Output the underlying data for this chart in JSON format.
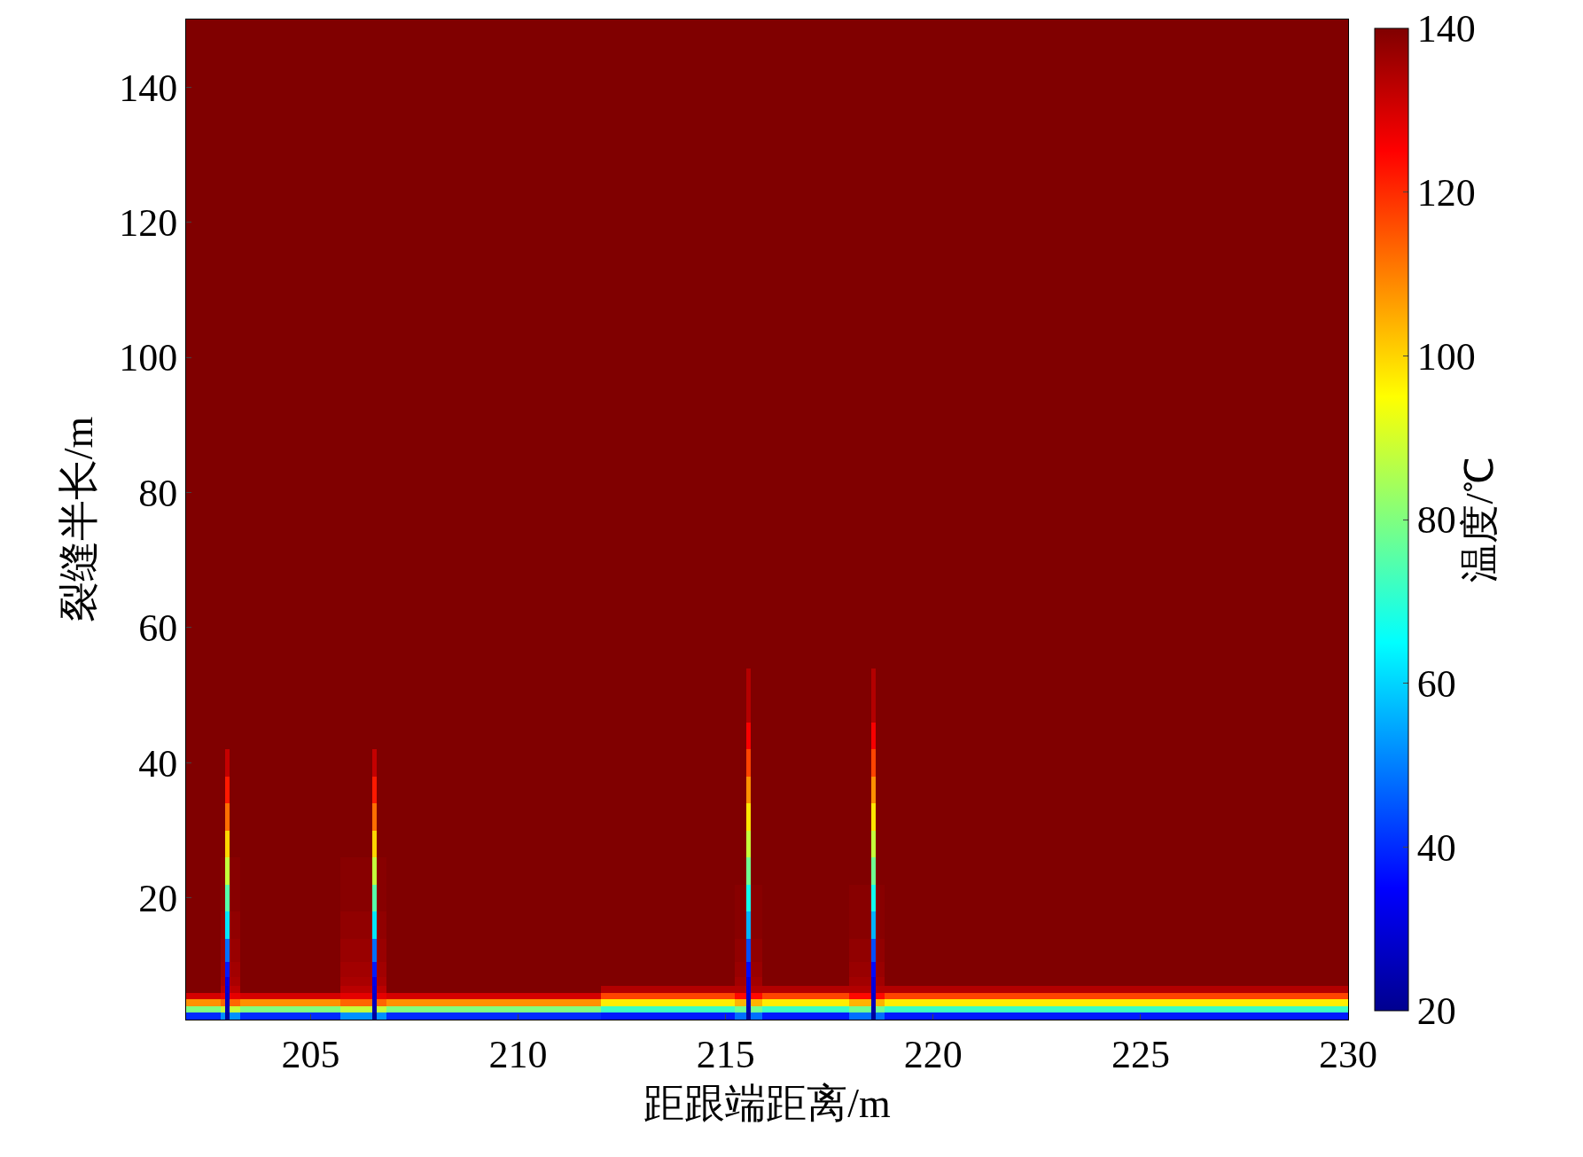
{
  "chart_data": {
    "type": "heatmap",
    "xlabel": "距跟端距离/m",
    "ylabel": "裂缝半长/m",
    "clabel": "温度/℃",
    "x": [
      202.25,
      202.75,
      202.9,
      203.0,
      203.1,
      203.5,
      205.0,
      206.44,
      206.54,
      206.64,
      207.0,
      209.0,
      211.9,
      212.1,
      215.0,
      215.45,
      215.55,
      215.65,
      216.1,
      217.5,
      218.47,
      218.57,
      218.67,
      219.0,
      222.0,
      226.0,
      229.25,
      229.75
    ],
    "y": [
      2.5,
      3.5,
      4.5,
      5.5,
      6.5,
      7.5,
      9,
      12,
      16,
      20,
      24,
      28,
      32,
      36,
      40,
      44,
      48,
      60,
      100,
      148.5,
      149.5
    ],
    "cells": [
      [
        40,
        40,
        52,
        22,
        52,
        40,
        40,
        52,
        22,
        52,
        40,
        40,
        40,
        38,
        38,
        48,
        22,
        48,
        38,
        38,
        48,
        22,
        48,
        38,
        38,
        38,
        38,
        38
      ],
      [
        80,
        80,
        88,
        24,
        88,
        80,
        80,
        88,
        24,
        88,
        80,
        80,
        80,
        72,
        72,
        78,
        24,
        78,
        72,
        72,
        78,
        24,
        78,
        72,
        72,
        72,
        72,
        72
      ],
      [
        108,
        108,
        113,
        26,
        113,
        108,
        108,
        113,
        26,
        113,
        108,
        108,
        108,
        97,
        97,
        104,
        26,
        104,
        97,
        97,
        104,
        26,
        104,
        97,
        97,
        97,
        97,
        97
      ],
      [
        130,
        130,
        128,
        28,
        128,
        130,
        130,
        128,
        28,
        128,
        130,
        130,
        130,
        117,
        117,
        124,
        28,
        124,
        117,
        117,
        124,
        28,
        124,
        117,
        117,
        117,
        117,
        117
      ],
      [
        140,
        140,
        133,
        30,
        133,
        140,
        140,
        133,
        30,
        133,
        140,
        140,
        140,
        134,
        134,
        134,
        30,
        134,
        134,
        134,
        134,
        30,
        134,
        134,
        134,
        134,
        134,
        134
      ],
      [
        140,
        140,
        135,
        32,
        135,
        140,
        140,
        135,
        32,
        135,
        140,
        140,
        140,
        140,
        140,
        136,
        31,
        136,
        140,
        140,
        136,
        31,
        136,
        140,
        140,
        140,
        140,
        140
      ],
      [
        140,
        140,
        136,
        38,
        136,
        140,
        140,
        136,
        38,
        136,
        140,
        140,
        140,
        140,
        140,
        137,
        36,
        137,
        140,
        140,
        137,
        36,
        137,
        140,
        140,
        140,
        140,
        140
      ],
      [
        140,
        140,
        137,
        48,
        137,
        140,
        140,
        137,
        48,
        137,
        140,
        140,
        140,
        140,
        140,
        138,
        44,
        138,
        140,
        140,
        138,
        44,
        138,
        140,
        140,
        140,
        140,
        140
      ],
      [
        140,
        140,
        138,
        62,
        138,
        140,
        140,
        138,
        62,
        138,
        140,
        140,
        140,
        140,
        140,
        139,
        56,
        139,
        140,
        140,
        139,
        56,
        139,
        140,
        140,
        140,
        140,
        140
      ],
      [
        140,
        140,
        139,
        75,
        139,
        140,
        140,
        139,
        75,
        139,
        140,
        140,
        140,
        140,
        140,
        139,
        67,
        139,
        140,
        140,
        139,
        67,
        139,
        140,
        140,
        140,
        140,
        140
      ],
      [
        140,
        140,
        139,
        88,
        139,
        140,
        140,
        139,
        88,
        139,
        140,
        140,
        140,
        140,
        140,
        140,
        78,
        140,
        140,
        140,
        140,
        78,
        140,
        140,
        140,
        140,
        140,
        140
      ],
      [
        140,
        140,
        140,
        100,
        140,
        140,
        140,
        140,
        100,
        140,
        140,
        140,
        140,
        140,
        140,
        140,
        88,
        140,
        140,
        140,
        140,
        88,
        140,
        140,
        140,
        140,
        140,
        140
      ],
      [
        140,
        140,
        140,
        112,
        140,
        140,
        140,
        140,
        112,
        140,
        140,
        140,
        140,
        140,
        140,
        140,
        98,
        140,
        140,
        140,
        140,
        98,
        140,
        140,
        140,
        140,
        140,
        140
      ],
      [
        140,
        140,
        140,
        122,
        140,
        140,
        140,
        140,
        122,
        140,
        140,
        140,
        140,
        140,
        140,
        140,
        108,
        140,
        140,
        140,
        140,
        108,
        140,
        140,
        140,
        140,
        140,
        140
      ],
      [
        140,
        140,
        140,
        132,
        140,
        140,
        140,
        140,
        132,
        140,
        140,
        140,
        140,
        140,
        140,
        140,
        117,
        140,
        140,
        140,
        140,
        117,
        140,
        140,
        140,
        140,
        140,
        140
      ],
      [
        140,
        140,
        140,
        140,
        140,
        140,
        140,
        140,
        140,
        140,
        140,
        140,
        140,
        140,
        140,
        140,
        126,
        140,
        140,
        140,
        140,
        126,
        140,
        140,
        140,
        140,
        140,
        140
      ],
      [
        140,
        140,
        140,
        140,
        140,
        140,
        140,
        140,
        140,
        140,
        140,
        140,
        140,
        140,
        140,
        140,
        134,
        140,
        140,
        140,
        140,
        134,
        140,
        140,
        140,
        140,
        140,
        140
      ],
      [
        140,
        140,
        140,
        140,
        140,
        140,
        140,
        140,
        140,
        140,
        140,
        140,
        140,
        140,
        140,
        140,
        140,
        140,
        140,
        140,
        140,
        140,
        140,
        140,
        140,
        140,
        140,
        140
      ],
      [
        140,
        140,
        140,
        140,
        140,
        140,
        140,
        140,
        140,
        140,
        140,
        140,
        140,
        140,
        140,
        140,
        140,
        140,
        140,
        140,
        140,
        140,
        140,
        140,
        140,
        140,
        140,
        140
      ],
      [
        140,
        140,
        140,
        140,
        140,
        140,
        140,
        140,
        140,
        140,
        140,
        140,
        140,
        140,
        140,
        140,
        140,
        140,
        140,
        140,
        140,
        140,
        140,
        140,
        140,
        140,
        140,
        140
      ],
      [
        140,
        140,
        140,
        140,
        140,
        140,
        140,
        140,
        140,
        140,
        140,
        140,
        140,
        140,
        140,
        140,
        140,
        140,
        140,
        140,
        140,
        140,
        140,
        140,
        140,
        140,
        140,
        140
      ]
    ],
    "clim": [
      20,
      140
    ],
    "cticks": [
      20,
      40,
      60,
      80,
      100,
      120,
      140
    ],
    "xlim": [
      202,
      230
    ],
    "xticks": [
      205,
      210,
      215,
      220,
      225,
      230
    ],
    "ylim": [
      2,
      150
    ],
    "yticks": [
      20,
      40,
      60,
      80,
      100,
      120,
      140
    ]
  }
}
